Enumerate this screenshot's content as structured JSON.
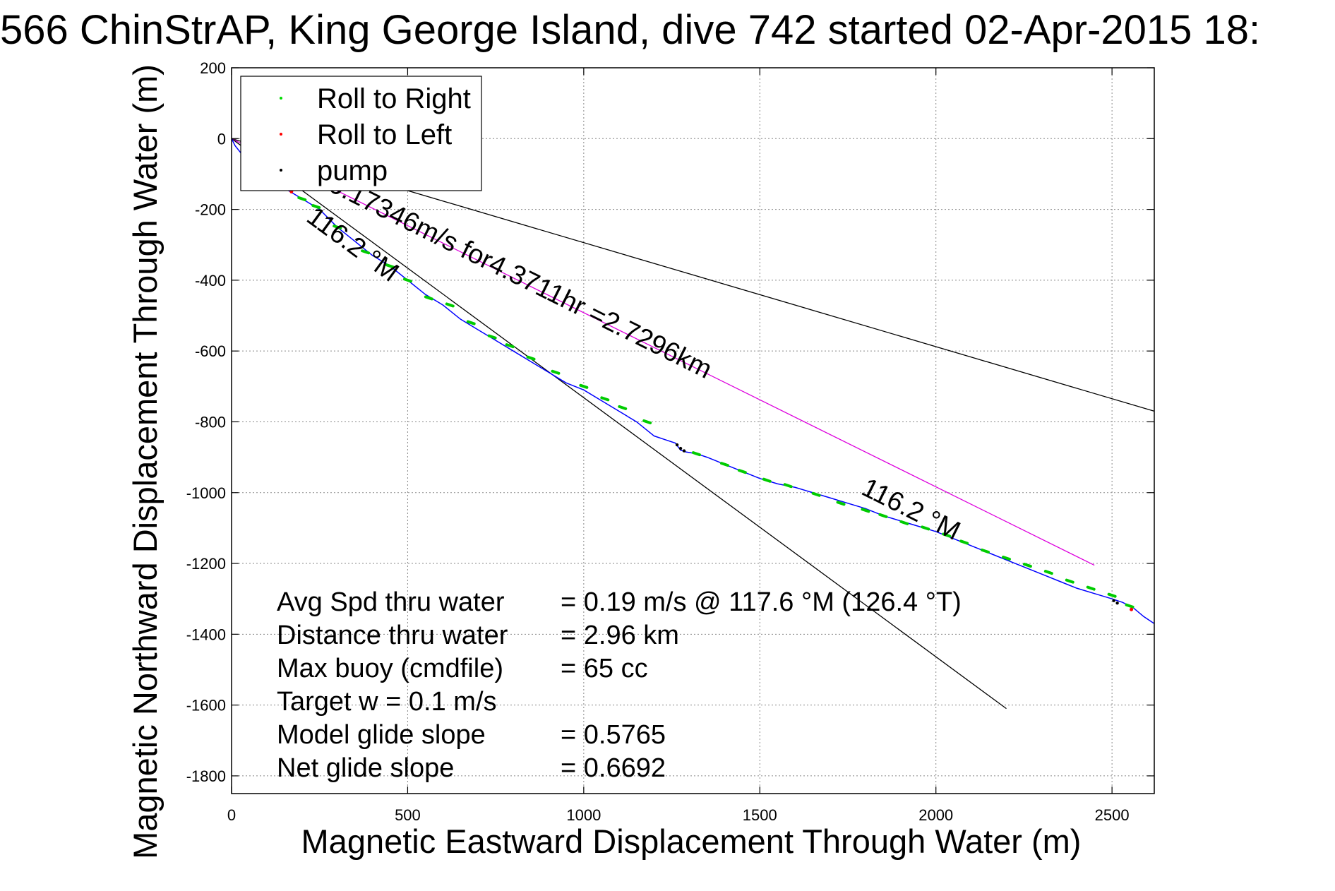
{
  "chart_data": {
    "type": "line",
    "title": "566 ChinStrAP, King George Island, dive 742 started 02-Apr-2015 18:",
    "xlabel": "Magnetic Eastward Displacement Through Water (m)",
    "ylabel": "Magnetic Northward Displacement Through Water (m)",
    "xlim": [
      0,
      2620
    ],
    "ylim": [
      -1850,
      200
    ],
    "xticks": [
      0,
      500,
      1000,
      1500,
      2000,
      2500
    ],
    "yticks": [
      200,
      0,
      -200,
      -400,
      -600,
      -800,
      -1000,
      -1200,
      -1400,
      -1600,
      -1800
    ],
    "grid": true,
    "legend_position": "top-left",
    "legend": [
      {
        "label": "Roll to Right",
        "color": "#00dd00"
      },
      {
        "label": "Roll to Left",
        "color": "#ff0000"
      },
      {
        "label": "pump",
        "color": "#000000"
      }
    ],
    "series": [
      {
        "name": "track",
        "color": "#0000ff",
        "x": [
          0,
          10,
          30,
          60,
          100,
          150,
          200,
          250,
          300,
          350,
          400,
          450,
          500,
          550,
          600,
          650,
          700,
          750,
          800,
          850,
          900,
          950,
          1000,
          1050,
          1100,
          1150,
          1200,
          1230,
          1260,
          1275,
          1290,
          1320,
          1350,
          1400,
          1450,
          1500,
          1550,
          1600,
          1650,
          1700,
          1750,
          1800,
          1850,
          1900,
          1950,
          2000,
          2050,
          2100,
          2150,
          2200,
          2250,
          2300,
          2350,
          2400,
          2450,
          2500,
          2530,
          2560,
          2590,
          2620
        ],
        "y": [
          0,
          -20,
          -45,
          -70,
          -100,
          -140,
          -170,
          -200,
          -250,
          -290,
          -330,
          -360,
          -400,
          -440,
          -470,
          -510,
          -540,
          -570,
          -600,
          -630,
          -660,
          -690,
          -710,
          -740,
          -770,
          -800,
          -840,
          -850,
          -860,
          -880,
          -885,
          -890,
          -900,
          -920,
          -940,
          -960,
          -975,
          -985,
          -1000,
          -1015,
          -1030,
          -1045,
          -1065,
          -1080,
          -1095,
          -1110,
          -1130,
          -1150,
          -1170,
          -1190,
          -1210,
          -1230,
          -1250,
          -1270,
          -1285,
          -1300,
          -1310,
          -1325,
          -1350,
          -1370
        ]
      }
    ],
    "reference_lines": [
      {
        "color": "#000000",
        "x": [
          0,
          2620
        ],
        "y": [
          0,
          -770
        ]
      },
      {
        "color": "#dd00dd",
        "x": [
          0,
          2450
        ],
        "y": [
          0,
          -1205
        ]
      },
      {
        "color": "#000000",
        "x": [
          0,
          2200
        ],
        "y": [
          0,
          -1610
        ]
      }
    ],
    "roll_right_x": [
      150,
      200,
      240,
      300,
      380,
      450,
      500,
      560,
      620,
      680,
      740,
      790,
      850,
      920,
      1000,
      1060,
      1110,
      1180,
      1320,
      1400,
      1450,
      1520,
      1580,
      1660,
      1730,
      1800,
      1850,
      1910,
      1970,
      2030,
      2080,
      2140,
      2200,
      2260,
      2320,
      2380,
      2440,
      2500,
      2550
    ],
    "roll_right_y": [
      -140,
      -170,
      -192,
      -250,
      -320,
      -360,
      -400,
      -450,
      -470,
      -520,
      -560,
      -585,
      -620,
      -660,
      -700,
      -735,
      -760,
      -800,
      -890,
      -920,
      -940,
      -965,
      -980,
      -1005,
      -1030,
      -1050,
      -1065,
      -1085,
      -1100,
      -1120,
      -1140,
      -1165,
      -1185,
      -1205,
      -1225,
      -1250,
      -1270,
      -1290,
      -1320
    ],
    "roll_left_x": [
      170,
      2555
    ],
    "roll_left_y": [
      -150,
      -1330
    ],
    "pump_x": [
      1265,
      1275,
      1285,
      2505,
      2515
    ],
    "pump_y": [
      -865,
      -875,
      -882,
      -1305,
      -1312
    ],
    "annotations": {
      "rate": "0.17346m/s for4.3711hr =2.7296km",
      "heading_upper": "116.2 °M",
      "heading_lower": "116.2 °M"
    },
    "stats": {
      "avg_spd_label": "Avg Spd thru water",
      "avg_spd_value": "=  0.19 m/s @ 117.6 °M (126.4 °T)",
      "distance_label": "Distance thru water",
      "distance_value": "=  2.96 km",
      "max_buoy_label": "Max buoy (cmdfile)",
      "max_buoy_value": "= 65 cc",
      "target_w": "Target w    = 0.1 m/s",
      "model_glide_label": "Model glide slope",
      "model_glide_value": "= 0.5765",
      "net_glide_label": "Net glide slope",
      "net_glide_value": "= 0.6692"
    }
  }
}
